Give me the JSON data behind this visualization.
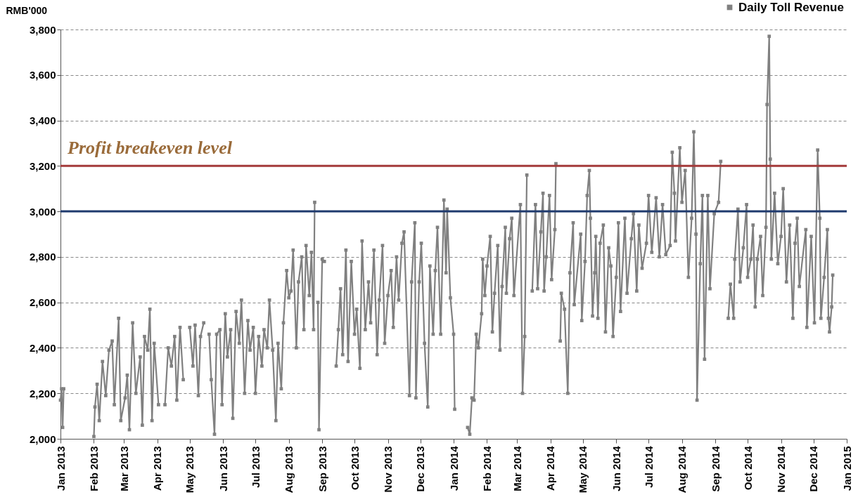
{
  "chart_data": {
    "type": "line",
    "ylabel": "RMB'000",
    "legend": "top right",
    "marker": "square",
    "grid": "y",
    "xlim": [
      "2013-01-01",
      "2015-01-01"
    ],
    "xticks": [
      {
        "value": "2013-01-01",
        "label": "Jan 2013"
      },
      {
        "value": "2013-02-01",
        "label": "Feb 2013"
      },
      {
        "value": "2013-03-01",
        "label": "Mar 2013"
      },
      {
        "value": "2013-04-01",
        "label": "Apr 2013"
      },
      {
        "value": "2013-05-01",
        "label": "May 2013"
      },
      {
        "value": "2013-06-01",
        "label": "Jun 2013"
      },
      {
        "value": "2013-07-01",
        "label": "Jul 2013"
      },
      {
        "value": "2013-08-01",
        "label": "Aug 2013"
      },
      {
        "value": "2013-09-01",
        "label": "Sep 2013"
      },
      {
        "value": "2013-10-01",
        "label": "Oct 2013"
      },
      {
        "value": "2013-11-01",
        "label": "Nov 2013"
      },
      {
        "value": "2013-12-01",
        "label": "Dec 2013"
      },
      {
        "value": "2014-01-01",
        "label": "Jan 2014"
      },
      {
        "value": "2014-02-01",
        "label": "Feb 2014"
      },
      {
        "value": "2014-03-01",
        "label": "Mar 2014"
      },
      {
        "value": "2014-04-01",
        "label": "Apr 2014"
      },
      {
        "value": "2014-05-01",
        "label": "May 2014"
      },
      {
        "value": "2014-06-01",
        "label": "Jun 2014"
      },
      {
        "value": "2014-07-01",
        "label": "Jul 2014"
      },
      {
        "value": "2014-08-01",
        "label": "Aug 2014"
      },
      {
        "value": "2014-09-01",
        "label": "Sep 2014"
      },
      {
        "value": "2014-10-01",
        "label": "Oct 2014"
      },
      {
        "value": "2014-11-01",
        "label": "Nov 2014"
      },
      {
        "value": "2014-12-01",
        "label": "Dec 2014"
      },
      {
        "value": "2015-01-01",
        "label": "Jan 2015"
      }
    ],
    "ylim": [
      2000,
      3800
    ],
    "yticks": [
      {
        "value": 2000,
        "label": "2,000"
      },
      {
        "value": 2200,
        "label": "2,200"
      },
      {
        "value": 2400,
        "label": "2,400"
      },
      {
        "value": 2600,
        "label": "2,600"
      },
      {
        "value": 2800,
        "label": "2,800"
      },
      {
        "value": 3000,
        "label": "3,000"
      },
      {
        "value": 3200,
        "label": "3,200"
      },
      {
        "value": 3400,
        "label": "3,400"
      },
      {
        "value": 3600,
        "label": "3,600"
      },
      {
        "value": 3800,
        "label": "3,800"
      }
    ],
    "ref_lines": [
      {
        "axis": "y",
        "value": 3200,
        "label": "Profit breakeven level",
        "color": "#a33a3a"
      },
      {
        "axis": "y",
        "value": 3000,
        "color": "#1f3a6e"
      }
    ],
    "x": [
      "2013-01-01",
      "2013-01-02",
      "2013-01-03",
      "2013-01-04",
      "2013-01-11",
      "2013-02-01",
      "2013-02-02",
      "2013-02-04",
      "2013-02-06",
      "2013-02-09",
      "2013-02-12",
      "2013-02-15",
      "2013-02-18",
      "2013-02-20",
      "2013-02-24",
      "2013-02-26",
      "2013-03-02",
      "2013-03-04",
      "2013-03-06",
      "2013-03-09",
      "2013-03-12",
      "2013-03-16",
      "2013-03-18",
      "2013-03-20",
      "2013-03-23",
      "2013-03-25",
      "2013-03-27",
      "2013-03-29",
      "2013-04-02",
      "2013-04-05",
      "2013-04-08",
      "2013-04-11",
      "2013-04-14",
      "2013-04-17",
      "2013-04-19",
      "2013-04-22",
      "2013-04-25",
      "2013-04-28",
      "2013-05-01",
      "2013-05-04",
      "2013-05-06",
      "2013-05-09",
      "2013-05-11",
      "2013-05-14",
      "2013-05-16",
      "2013-05-19",
      "2013-05-21",
      "2013-05-24",
      "2013-05-26",
      "2013-05-29",
      "2013-05-31",
      "2013-06-03",
      "2013-06-05",
      "2013-06-08",
      "2013-06-10",
      "2013-06-13",
      "2013-06-16",
      "2013-06-18",
      "2013-06-21",
      "2013-06-24",
      "2013-06-26",
      "2013-06-29",
      "2013-07-01",
      "2013-07-04",
      "2013-07-07",
      "2013-07-09",
      "2013-07-12",
      "2013-07-14",
      "2013-07-17",
      "2013-07-20",
      "2013-07-22",
      "2013-07-25",
      "2013-07-27",
      "2013-07-30",
      "2013-08-01",
      "2013-08-03",
      "2013-08-05",
      "2013-08-08",
      "2013-08-10",
      "2013-08-13",
      "2013-08-15",
      "2013-08-17",
      "2013-08-20",
      "2013-08-22",
      "2013-08-24",
      "2013-08-25",
      "2013-08-27",
      "2013-08-28",
      "2013-08-29",
      "2013-09-01",
      "2013-09-03",
      "2013-09-05",
      "2013-09-14",
      "2013-09-16",
      "2013-09-18",
      "2013-09-20",
      "2013-09-23",
      "2013-09-25",
      "2013-09-28",
      "2013-10-01",
      "2013-10-03",
      "2013-10-06",
      "2013-10-08",
      "2013-10-11",
      "2013-10-14",
      "2013-10-16",
      "2013-10-19",
      "2013-10-22",
      "2013-10-24",
      "2013-10-27",
      "2013-10-29",
      "2013-11-01",
      "2013-11-04",
      "2013-11-06",
      "2013-11-09",
      "2013-11-11",
      "2013-11-14",
      "2013-11-16",
      "2013-11-21",
      "2013-11-23",
      "2013-11-26",
      "2013-11-27",
      "2013-11-30",
      "2013-12-02",
      "2013-12-05",
      "2013-12-08",
      "2013-12-10",
      "2013-12-13",
      "2013-12-15",
      "2013-12-17",
      "2013-12-20",
      "2013-12-23",
      "2013-12-25",
      "2013-12-26",
      "2013-12-29",
      "2014-01-01",
      "2014-01-02",
      "2014-01-04",
      "2014-01-14",
      "2014-01-16",
      "2014-01-18",
      "2014-01-20",
      "2014-01-22",
      "2014-01-24",
      "2014-01-27",
      "2014-01-28",
      "2014-01-30",
      "2014-02-01",
      "2014-02-04",
      "2014-02-06",
      "2014-02-08",
      "2014-02-11",
      "2014-02-13",
      "2014-02-15",
      "2014-02-18",
      "2014-02-19",
      "2014-02-22",
      "2014-02-24",
      "2014-02-26",
      "2014-03-04",
      "2014-03-06",
      "2014-03-08",
      "2014-03-10",
      "2014-03-11",
      "2014-03-15",
      "2014-03-18",
      "2014-03-20",
      "2014-03-23",
      "2014-03-25",
      "2014-03-26",
      "2014-03-28",
      "2014-03-31",
      "2014-04-02",
      "2014-04-05",
      "2014-04-06",
      "2014-04-07",
      "2014-04-10",
      "2014-04-11",
      "2014-04-14",
      "2014-04-17",
      "2014-04-19",
      "2014-04-22",
      "2014-04-23",
      "2014-04-29",
      "2014-04-30",
      "2014-05-03",
      "2014-05-05",
      "2014-05-07",
      "2014-05-08",
      "2014-05-10",
      "2014-05-12",
      "2014-05-13",
      "2014-05-15",
      "2014-05-17",
      "2014-05-20",
      "2014-05-22",
      "2014-05-25",
      "2014-05-27",
      "2014-05-29",
      "2014-06-01",
      "2014-06-03",
      "2014-06-05",
      "2014-06-09",
      "2014-06-11",
      "2014-06-15",
      "2014-06-17",
      "2014-06-20",
      "2014-06-22",
      "2014-06-25",
      "2014-06-29",
      "2014-07-01",
      "2014-07-04",
      "2014-07-08",
      "2014-07-11",
      "2014-07-14",
      "2014-07-17",
      "2014-07-21",
      "2014-07-23",
      "2014-07-25",
      "2014-07-26",
      "2014-07-30",
      "2014-08-01",
      "2014-08-04",
      "2014-08-07",
      "2014-08-10",
      "2014-08-12",
      "2014-08-14",
      "2014-08-15",
      "2014-08-18",
      "2014-08-20",
      "2014-08-22",
      "2014-08-25",
      "2014-08-27",
      "2014-08-31",
      "2014-09-04",
      "2014-09-06",
      "2014-09-07",
      "2014-09-13",
      "2014-09-15",
      "2014-09-18",
      "2014-09-19",
      "2014-09-22",
      "2014-09-24",
      "2014-09-27",
      "2014-09-30",
      "2014-10-01",
      "2014-10-04",
      "2014-10-06",
      "2014-10-08",
      "2014-10-10",
      "2014-10-13",
      "2014-10-15",
      "2014-10-18",
      "2014-10-19",
      "2014-10-21",
      "2014-10-22",
      "2014-10-23",
      "2014-10-26",
      "2014-10-29",
      "2014-11-01",
      "2014-11-03",
      "2014-11-06",
      "2014-11-09",
      "2014-11-12",
      "2014-11-14",
      "2014-11-16",
      "2014-11-18",
      "2014-11-24",
      "2014-11-25",
      "2014-11-29",
      "2014-12-02",
      "2014-12-05",
      "2014-12-07",
      "2014-12-08",
      "2014-12-11",
      "2014-12-14",
      "2014-12-15",
      "2014-12-16",
      "2014-12-18",
      "2014-12-19"
    ],
    "series": [
      {
        "name": "Daily Toll Revenue",
        "color": "#808080",
        "values": [
          2170,
          2220,
          2050,
          2220,
          null,
          2010,
          2140,
          2240,
          2080,
          2340,
          2190,
          2390,
          2430,
          2150,
          2530,
          2080,
          2180,
          2280,
          2040,
          2510,
          2200,
          2360,
          2060,
          2450,
          2390,
          2570,
          2080,
          2420,
          2150,
          null,
          2150,
          2400,
          2320,
          2450,
          2170,
          2490,
          2260,
          null,
          2490,
          2320,
          2500,
          2190,
          2450,
          2510,
          null,
          2460,
          2260,
          2020,
          2460,
          2480,
          2150,
          2550,
          2360,
          2480,
          2090,
          2560,
          2420,
          2610,
          2200,
          2520,
          2390,
          2490,
          2200,
          2450,
          2320,
          2480,
          2400,
          2610,
          2390,
          2080,
          2420,
          2220,
          2510,
          2740,
          2620,
          2650,
          2830,
          2400,
          2690,
          2800,
          2480,
          2850,
          2630,
          2820,
          2480,
          3040,
          null,
          2600,
          2040,
          2790,
          2780,
          null,
          2320,
          2480,
          2660,
          2370,
          2830,
          2340,
          2780,
          2460,
          2570,
          2310,
          2870,
          2480,
          2690,
          2510,
          2830,
          2370,
          2610,
          2850,
          2420,
          2630,
          2740,
          2490,
          2800,
          2610,
          2860,
          2910,
          2190,
          2690,
          2950,
          2180,
          2690,
          2860,
          2420,
          2140,
          2760,
          2460,
          2740,
          2930,
          2460,
          3050,
          2730,
          3010,
          2620,
          2460,
          2130,
          null,
          2050,
          2020,
          2180,
          2170,
          2460,
          2400,
          2550,
          2790,
          2630,
          2760,
          2890,
          2470,
          2640,
          2850,
          2390,
          2670,
          2930,
          2640,
          2880,
          2970,
          2630,
          3030,
          2200,
          2450,
          3160,
          null,
          2650,
          3030,
          2660,
          2910,
          3080,
          2650,
          2800,
          3070,
          2700,
          2920,
          3210,
          null,
          2430,
          2640,
          2570,
          2200,
          2730,
          2950,
          2590,
          2900,
          2520,
          2780,
          3070,
          3180,
          2970,
          2540,
          2730,
          2890,
          2530,
          2860,
          2940,
          2470,
          2840,
          2760,
          2450,
          2710,
          2950,
          2560,
          2970,
          2640,
          2880,
          2990,
          2650,
          2940,
          2750,
          2860,
          3070,
          2820,
          3060,
          2800,
          3030,
          2810,
          2850,
          3260,
          3080,
          2870,
          3280,
          3040,
          3180,
          2710,
          2970,
          3350,
          2900,
          2170,
          2770,
          3070,
          2350,
          3070,
          2660,
          2990,
          3040,
          3220,
          null,
          2530,
          2680,
          2530,
          2790,
          3010,
          2690,
          2840,
          3030,
          2710,
          2790,
          2940,
          2580,
          2790,
          2890,
          2630,
          2930,
          3470,
          3770,
          3230,
          2790,
          3080,
          2770,
          2890,
          3100,
          2690,
          2940,
          2530,
          2860,
          2970,
          2670,
          2920,
          2490,
          2890,
          2510,
          3270,
          2970,
          2530,
          2710,
          2920,
          2530,
          2470,
          2580,
          2720
        ]
      }
    ]
  }
}
